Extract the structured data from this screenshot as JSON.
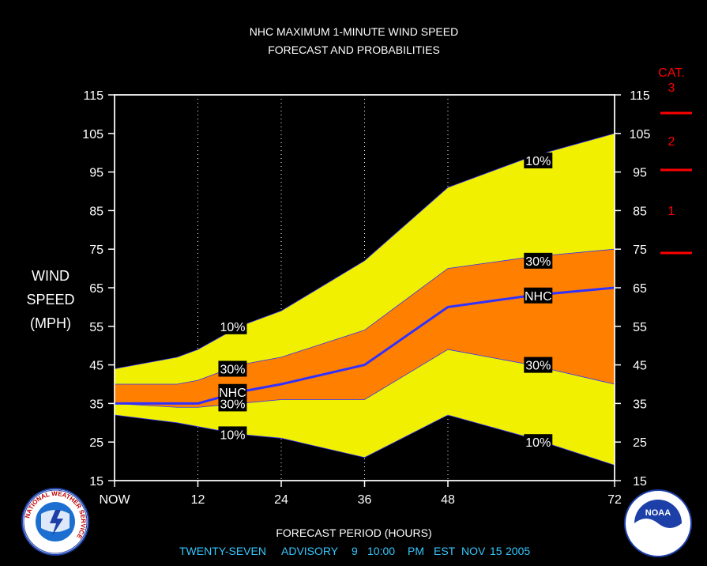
{
  "chart_data": {
    "type": "area",
    "title": [
      "NHC MAXIMUM 1-MINUTE WIND SPEED",
      "FORECAST AND PROBABILITIES"
    ],
    "xlabel": "FORECAST PERIOD (HOURS)",
    "ylabel": [
      "WIND",
      "SPEED",
      "(MPH)"
    ],
    "x_ticks": [
      {
        "value": 0,
        "label": "NOW"
      },
      {
        "value": 12,
        "label": "12"
      },
      {
        "value": 24,
        "label": "24"
      },
      {
        "value": 36,
        "label": "36"
      },
      {
        "value": 48,
        "label": "48"
      },
      {
        "value": 72,
        "label": "72"
      }
    ],
    "xlim": [
      0,
      72
    ],
    "ylim": [
      15,
      115
    ],
    "y_ticks": [
      15,
      25,
      35,
      45,
      55,
      65,
      75,
      85,
      95,
      105,
      115
    ],
    "gridlines_x": [
      12,
      24,
      36,
      48,
      72
    ],
    "x": [
      0,
      9,
      12,
      18,
      24,
      36,
      48,
      60,
      72
    ],
    "bands": [
      {
        "lower": [
          32,
          30,
          29,
          27,
          26,
          21,
          32,
          26,
          19
        ],
        "upper": [
          44,
          47,
          49,
          55,
          59,
          72,
          91,
          99,
          105
        ],
        "color": "#f0f000",
        "labels": [
          "10%",
          "10%"
        ]
      },
      {
        "lower": [
          35,
          34,
          34,
          35,
          36,
          36,
          49,
          45,
          40
        ],
        "upper": [
          40,
          40,
          41,
          45,
          47,
          54,
          70,
          73,
          75
        ],
        "color": "#ff8000",
        "labels": [
          "30%",
          "30%"
        ]
      }
    ],
    "nhc_line": {
      "name": "NHC",
      "values": [
        35,
        35,
        35,
        38,
        40,
        45,
        60,
        63,
        65
      ],
      "color": "#3030ff"
    },
    "band_labels": [
      {
        "text": "10%",
        "x": 17,
        "y": 55
      },
      {
        "text": "30%",
        "x": 17,
        "y": 44
      },
      {
        "text": "30%",
        "x": 17,
        "y": 35
      },
      {
        "text": "10%",
        "x": 17,
        "y": 27
      },
      {
        "text": "10%",
        "x": 61,
        "y": 98
      },
      {
        "text": "30%",
        "x": 61,
        "y": 72
      },
      {
        "text": "30%",
        "x": 61,
        "y": 45
      },
      {
        "text": "10%",
        "x": 61,
        "y": 25
      }
    ],
    "nhc_labels": [
      {
        "text": "NHC",
        "x": 17,
        "y": 38
      },
      {
        "text": "NHC",
        "x": 61,
        "y": 63
      }
    ],
    "categories_legend": {
      "title": "CAT.",
      "color": "#ff0000",
      "levels": [
        {
          "label": "3",
          "threshold": 111
        },
        {
          "label": "2",
          "threshold": 96
        },
        {
          "label": "1",
          "threshold": 74
        }
      ]
    }
  },
  "advisory": {
    "number_text": "TWENTY-SEVEN",
    "word": "ADVISORY",
    "day": "9",
    "time": "10:00",
    "ampm": "PM",
    "zone": "EST",
    "month": "NOV",
    "date": "15",
    "year": "2005",
    "color": "#36c8ff"
  },
  "logos": {
    "left": {
      "icon": "nws-logo-icon",
      "text": "NATIONAL WEATHER SERVICE"
    },
    "right": {
      "icon": "noaa-logo-icon",
      "center_text": "NOAA"
    }
  }
}
